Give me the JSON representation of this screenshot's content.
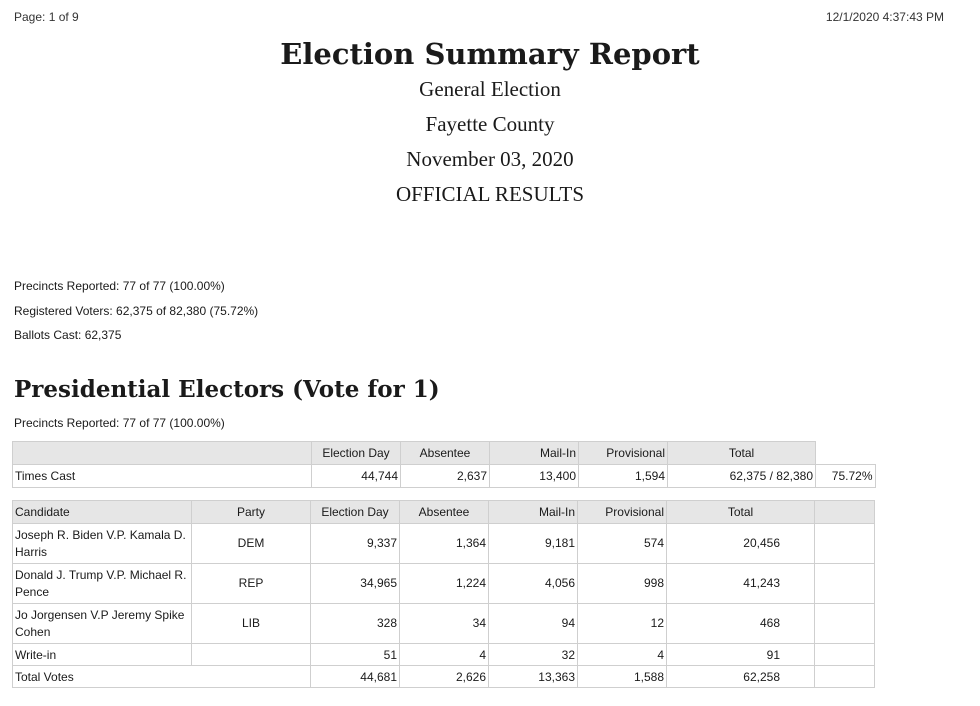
{
  "header": {
    "page": "Page: 1 of 9",
    "timestamp": "12/1/2020 4:37:43 PM"
  },
  "title": "Election Summary Report",
  "subtitles": [
    "General Election",
    "Fayette County",
    "November 03, 2020",
    "OFFICIAL RESULTS"
  ],
  "stats": {
    "precincts": "Precincts Reported: 77 of 77 (100.00%)",
    "registered": "Registered Voters: 62,375 of 82,380 (75.72%)",
    "ballots": "Ballots Cast: 62,375"
  },
  "contest": {
    "title": "Presidential Electors (Vote for  1)",
    "precincts": "Precincts Reported: 77 of 77 (100.00%)",
    "times_cast": {
      "headers": [
        "Election Day",
        "Absentee",
        "Mail-In",
        "Provisional",
        "Total"
      ],
      "label": "Times Cast",
      "values": [
        "44,744",
        "2,637",
        "13,400",
        "1,594",
        "62,375 / 82,380",
        "75.72%"
      ]
    },
    "candidates": {
      "headers": [
        "Candidate",
        "Party",
        "Election Day",
        "Absentee",
        "Mail-In",
        "Provisional",
        "Total"
      ],
      "rows": [
        {
          "name": "Joseph R. Biden V.P. Kamala D. Harris",
          "party": "DEM",
          "election_day": "9,337",
          "absentee": "1,364",
          "mail_in": "9,181",
          "provisional": "574",
          "total": "20,456"
        },
        {
          "name": "Donald J. Trump V.P. Michael R. Pence",
          "party": "REP",
          "election_day": "34,965",
          "absentee": "1,224",
          "mail_in": "4,056",
          "provisional": "998",
          "total": "41,243"
        },
        {
          "name": "Jo Jorgensen V.P Jeremy Spike Cohen",
          "party": "LIB",
          "election_day": "328",
          "absentee": "34",
          "mail_in": "94",
          "provisional": "12",
          "total": "468"
        },
        {
          "name": "Write-in",
          "party": "",
          "election_day": "51",
          "absentee": "4",
          "mail_in": "32",
          "provisional": "4",
          "total": "91"
        }
      ],
      "totals": {
        "label": "Total Votes",
        "election_day": "44,681",
        "absentee": "2,626",
        "mail_in": "13,363",
        "provisional": "1,588",
        "total": "62,258"
      }
    }
  }
}
